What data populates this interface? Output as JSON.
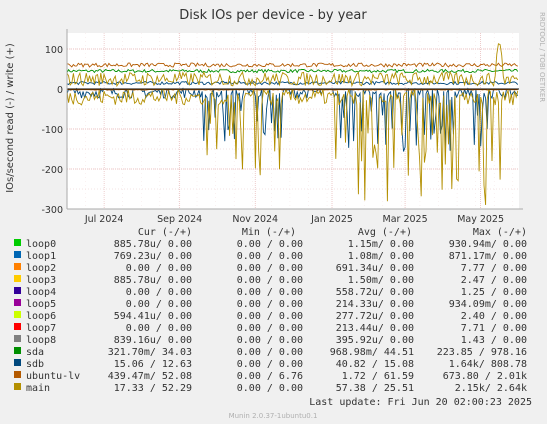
{
  "title": "Disk IOs per device - by year",
  "side_text": "RRDTOOL / TOBI OETIKER",
  "footer": "Munin 2.0.37-1ubuntu0.1",
  "last_update": "Last update: Fri Jun 20 02:00:23 2025",
  "legend_headers": {
    "cur": "Cur (-/+)",
    "min": "Min (-/+)",
    "avg": "Avg (-/+)",
    "max": "Max (-/+)"
  },
  "legend": [
    {
      "name": "loop0",
      "color": "#00cc00",
      "cur": "885.78u/  0.00",
      "min": "0.00 /  0.00",
      "avg": "1.15m/  0.00",
      "max": "930.94m/  0.00"
    },
    {
      "name": "loop1",
      "color": "#0066b3",
      "cur": "769.23u/  0.00",
      "min": "0.00 /  0.00",
      "avg": "1.08m/  0.00",
      "max": "871.17m/  0.00"
    },
    {
      "name": "loop2",
      "color": "#ff8000",
      "cur": "0.00 /  0.00",
      "min": "0.00 /  0.00",
      "avg": "691.34u/  0.00",
      "max": "7.77 /  0.00"
    },
    {
      "name": "loop3",
      "color": "#ffcc00",
      "cur": "885.78u/  0.00",
      "min": "0.00 /  0.00",
      "avg": "1.50m/  0.00",
      "max": "2.47 /  0.00"
    },
    {
      "name": "loop4",
      "color": "#330099",
      "cur": "0.00 /  0.00",
      "min": "0.00 /  0.00",
      "avg": "558.72u/  0.00",
      "max": "1.25 /  0.00"
    },
    {
      "name": "loop5",
      "color": "#990099",
      "cur": "0.00 /  0.00",
      "min": "0.00 /  0.00",
      "avg": "214.33u/  0.00",
      "max": "934.09m/  0.00"
    },
    {
      "name": "loop6",
      "color": "#ccff00",
      "cur": "594.41u/  0.00",
      "min": "0.00 /  0.00",
      "avg": "277.72u/  0.00",
      "max": "2.40 /  0.00"
    },
    {
      "name": "loop7",
      "color": "#ff0000",
      "cur": "0.00 /  0.00",
      "min": "0.00 /  0.00",
      "avg": "213.44u/  0.00",
      "max": "7.71 /  0.00"
    },
    {
      "name": "loop8",
      "color": "#808080",
      "cur": "839.16u/  0.00",
      "min": "0.00 /  0.00",
      "avg": "395.92u/  0.00",
      "max": "1.43 /  0.00"
    },
    {
      "name": "sda",
      "color": "#008f00",
      "cur": "321.70m/ 34.03",
      "min": "0.00 /  0.00",
      "avg": "968.98m/ 44.51",
      "max": "223.85 / 978.16"
    },
    {
      "name": "sdb",
      "color": "#00487d",
      "cur": "15.06 / 12.63",
      "min": "0.00 /  0.00",
      "avg": "40.82 / 15.08",
      "max": "1.64k/ 808.78"
    },
    {
      "name": "ubuntu-lv",
      "color": "#b35a00",
      "cur": "439.47m/ 52.08",
      "min": "0.00 /  6.76",
      "avg": "1.72 / 61.59",
      "max": "673.80 /  2.01k"
    },
    {
      "name": "main",
      "color": "#b38f00",
      "cur": "17.33 / 52.29",
      "min": "0.00 /  0.00",
      "avg": "57.38 / 25.51",
      "max": "2.15k/  2.64k"
    }
  ],
  "chart_data": {
    "type": "line",
    "title": "Disk IOs per device - by year",
    "ylabel": "IOs/second read (-) / write (+)",
    "xlabel": "",
    "ylim": [
      -300,
      140
    ],
    "yticks": [
      -300,
      -200,
      -100,
      0,
      100
    ],
    "xtick_labels": [
      "Jul 2024",
      "Sep 2024",
      "Nov 2024",
      "Jan 2025",
      "Mar 2025",
      "May 2025"
    ],
    "x_range_days": [
      0,
      365
    ],
    "xtick_days": [
      30,
      91,
      152,
      214,
      273,
      334
    ],
    "grid": true,
    "series": [
      {
        "name": "sda",
        "color": "#008f00",
        "write": {
          "base": 45,
          "amp": 8
        },
        "read": {
          "base": 0,
          "amp": 1
        }
      },
      {
        "name": "sdb",
        "color": "#00487d",
        "write": {
          "base": 15,
          "amp": 8
        },
        "read": {
          "base": -8,
          "amp": 60,
          "drops": [
            [
              110,
              175,
              -130
            ],
            [
              215,
              340,
              -150
            ]
          ]
        }
      },
      {
        "name": "ubuntu-lv",
        "color": "#b35a00",
        "write": {
          "base": 60,
          "amp": 10
        },
        "read": {
          "base": -2,
          "amp": 3
        }
      },
      {
        "name": "main",
        "color": "#b38f00",
        "write": {
          "base": 25,
          "amp": 35,
          "peak": [
            349,
            125
          ]
        },
        "read": {
          "base": -20,
          "amp": 80,
          "drops": [
            [
              110,
              175,
              -200
            ],
            [
              215,
              355,
              -280
            ]
          ]
        }
      }
    ]
  }
}
